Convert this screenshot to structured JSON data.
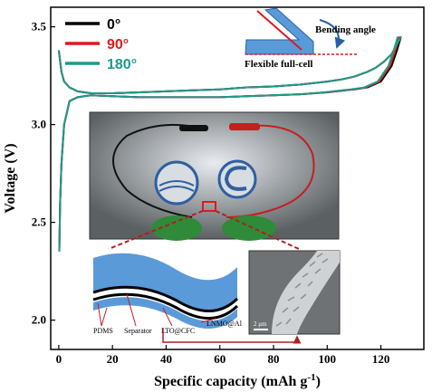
{
  "chart_data": {
    "type": "line",
    "xlabel": "Specific capacity (mAh g",
    "xlabel_sup": "-1",
    "xlabel_end": ")",
    "ylabel": "Voltage (V)",
    "xlim": [
      -3,
      136
    ],
    "ylim": [
      1.85,
      3.6
    ],
    "xticks": [
      "0",
      "20",
      "40",
      "60",
      "80",
      "100",
      "120"
    ],
    "yticks": [
      "2.0",
      "2.5",
      "3.0",
      "3.5"
    ],
    "legend_position": "top-left",
    "series": [
      {
        "name": "0°",
        "color": "#000000",
        "charge": [
          [
            0,
            3.38
          ],
          [
            1,
            3.27
          ],
          [
            2,
            3.22
          ],
          [
            4,
            3.19
          ],
          [
            7,
            3.17
          ],
          [
            12,
            3.16
          ],
          [
            20,
            3.16
          ],
          [
            30,
            3.165
          ],
          [
            40,
            3.17
          ],
          [
            50,
            3.175
          ],
          [
            60,
            3.18
          ],
          [
            70,
            3.19
          ],
          [
            80,
            3.195
          ],
          [
            90,
            3.205
          ],
          [
            100,
            3.22
          ],
          [
            105,
            3.23
          ],
          [
            110,
            3.245
          ],
          [
            115,
            3.27
          ],
          [
            118,
            3.29
          ],
          [
            121,
            3.32
          ],
          [
            124,
            3.36
          ],
          [
            126,
            3.41
          ],
          [
            127.5,
            3.45
          ]
        ],
        "discharge": [
          [
            127.5,
            3.45
          ],
          [
            126,
            3.38
          ],
          [
            124,
            3.3
          ],
          [
            120,
            3.22
          ],
          [
            115,
            3.19
          ],
          [
            110,
            3.18
          ],
          [
            100,
            3.165
          ],
          [
            90,
            3.155
          ],
          [
            80,
            3.15
          ],
          [
            70,
            3.145
          ],
          [
            60,
            3.14
          ],
          [
            50,
            3.14
          ],
          [
            40,
            3.14
          ],
          [
            30,
            3.14
          ],
          [
            20,
            3.145
          ],
          [
            12,
            3.15
          ],
          [
            7,
            3.14
          ],
          [
            4,
            3.12
          ],
          [
            2,
            3.0
          ],
          [
            1,
            2.8
          ],
          [
            0.5,
            2.6
          ],
          [
            0.2,
            2.35
          ]
        ]
      },
      {
        "name": "90°",
        "color": "#e0191e",
        "charge": [
          [
            0,
            3.38
          ],
          [
            1,
            3.27
          ],
          [
            2,
            3.22
          ],
          [
            4,
            3.19
          ],
          [
            7,
            3.17
          ],
          [
            12,
            3.16
          ],
          [
            20,
            3.16
          ],
          [
            30,
            3.165
          ],
          [
            40,
            3.17
          ],
          [
            50,
            3.175
          ],
          [
            60,
            3.18
          ],
          [
            70,
            3.19
          ],
          [
            80,
            3.195
          ],
          [
            90,
            3.205
          ],
          [
            100,
            3.22
          ],
          [
            105,
            3.23
          ],
          [
            110,
            3.245
          ],
          [
            115,
            3.27
          ],
          [
            118,
            3.29
          ],
          [
            121,
            3.32
          ],
          [
            124,
            3.36
          ],
          [
            126,
            3.41
          ],
          [
            127.5,
            3.45
          ]
        ],
        "discharge": [
          [
            127.5,
            3.45
          ],
          [
            126,
            3.38
          ],
          [
            124,
            3.3
          ],
          [
            120,
            3.22
          ],
          [
            115,
            3.19
          ],
          [
            110,
            3.18
          ],
          [
            100,
            3.165
          ],
          [
            90,
            3.155
          ],
          [
            80,
            3.15
          ],
          [
            70,
            3.145
          ],
          [
            60,
            3.14
          ],
          [
            50,
            3.14
          ],
          [
            40,
            3.14
          ],
          [
            30,
            3.14
          ],
          [
            20,
            3.145
          ],
          [
            12,
            3.15
          ],
          [
            7,
            3.14
          ],
          [
            4,
            3.12
          ],
          [
            2,
            3.0
          ],
          [
            1,
            2.8
          ],
          [
            0.5,
            2.6
          ],
          [
            0.2,
            2.35
          ]
        ]
      },
      {
        "name": "180°",
        "color": "#1f9a8a",
        "charge": [
          [
            0,
            3.38
          ],
          [
            1,
            3.27
          ],
          [
            2,
            3.22
          ],
          [
            4,
            3.19
          ],
          [
            7,
            3.17
          ],
          [
            12,
            3.16
          ],
          [
            20,
            3.16
          ],
          [
            30,
            3.165
          ],
          [
            40,
            3.17
          ],
          [
            50,
            3.175
          ],
          [
            60,
            3.18
          ],
          [
            70,
            3.19
          ],
          [
            80,
            3.195
          ],
          [
            90,
            3.205
          ],
          [
            100,
            3.22
          ],
          [
            105,
            3.23
          ],
          [
            110,
            3.245
          ],
          [
            115,
            3.27
          ],
          [
            118,
            3.29
          ],
          [
            121,
            3.32
          ],
          [
            124,
            3.36
          ],
          [
            126,
            3.41
          ],
          [
            127.5,
            3.45
          ]
        ],
        "discharge": [
          [
            127.5,
            3.45
          ],
          [
            126,
            3.38
          ],
          [
            124,
            3.3
          ],
          [
            120,
            3.22
          ],
          [
            115,
            3.19
          ],
          [
            110,
            3.18
          ],
          [
            100,
            3.165
          ],
          [
            90,
            3.155
          ],
          [
            80,
            3.15
          ],
          [
            70,
            3.145
          ],
          [
            60,
            3.14
          ],
          [
            50,
            3.14
          ],
          [
            40,
            3.14
          ],
          [
            30,
            3.14
          ],
          [
            20,
            3.145
          ],
          [
            12,
            3.15
          ],
          [
            7,
            3.14
          ],
          [
            4,
            3.12
          ],
          [
            2,
            3.0
          ],
          [
            1,
            2.8
          ],
          [
            0.5,
            2.6
          ],
          [
            0.2,
            2.35
          ]
        ]
      }
    ]
  },
  "inset_bending": {
    "label_angle": "Bending angle",
    "label_cell": "Flexible full-cell"
  },
  "inset_layers": {
    "labels": [
      "PDMS",
      "Separator",
      "LTO@CFC",
      "LNMO@Al"
    ]
  },
  "inset_sem": {
    "scale_label": "2 μm"
  },
  "colors": {
    "bg": "#ffffff",
    "photo_bg": "#6e7275",
    "layer_blue": "#5a9ad8",
    "dashed": "#b02020"
  }
}
